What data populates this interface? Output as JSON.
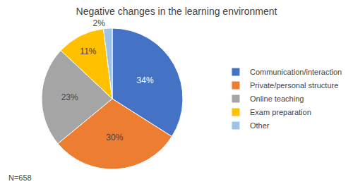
{
  "chart_data": {
    "type": "pie",
    "title": "Negative changes in the learning environment",
    "categories": [
      "Communication/interaction",
      "Private/personal structure",
      "Online teaching",
      "Exam preparation",
      "Other"
    ],
    "values": [
      34,
      30,
      23,
      11,
      2
    ],
    "value_labels": [
      "34%",
      "30%",
      "23%",
      "11%",
      "2%"
    ],
    "data_labels": true,
    "colors": [
      "#4472C4",
      "#ED7D31",
      "#A5A5A5",
      "#FFC000",
      "#9DC3E6"
    ],
    "legend": "right",
    "annotations": [
      "N=658"
    ]
  }
}
